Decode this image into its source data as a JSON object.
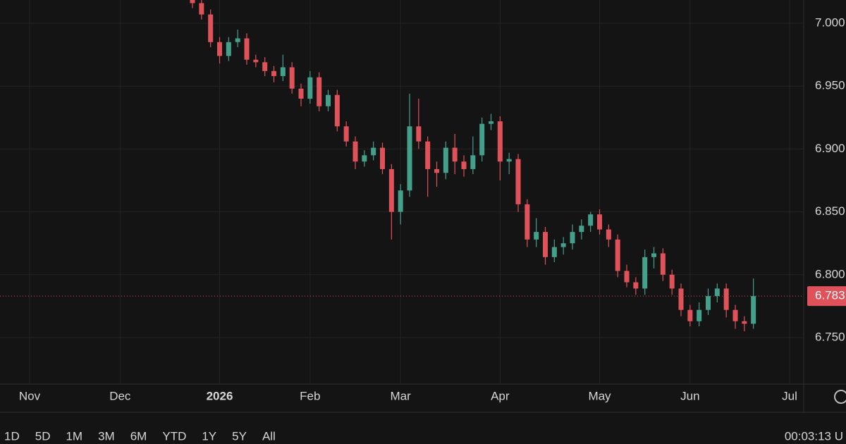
{
  "chart_data": {
    "type": "candlestick",
    "categories": [
      "Nov",
      null,
      null,
      null,
      null,
      null,
      null,
      null,
      null,
      null,
      "Dec",
      null,
      null,
      null,
      null,
      null,
      null,
      null,
      null,
      null,
      null,
      "2026",
      null,
      null,
      null,
      null,
      null,
      null,
      null,
      null,
      null,
      "Feb",
      null,
      null,
      null,
      null,
      null,
      null,
      null,
      null,
      null,
      "Mar",
      null,
      null,
      null,
      null,
      null,
      null,
      null,
      null,
      null,
      null,
      "Apr",
      null,
      null,
      null,
      null,
      null,
      null,
      null,
      null,
      null,
      null,
      "May",
      null,
      null,
      null,
      null,
      null,
      null,
      null,
      null,
      null,
      "Jun",
      null,
      null,
      null,
      null,
      null,
      null,
      null,
      null,
      null,
      null,
      "Jul",
      null
    ],
    "open": [
      null,
      null,
      null,
      null,
      null,
      null,
      null,
      null,
      null,
      null,
      null,
      null,
      null,
      null,
      null,
      null,
      null,
      null,
      7.022,
      7.016,
      7.007,
      6.985,
      6.974,
      6.985,
      6.988,
      6.971,
      6.969,
      6.962,
      6.958,
      6.965,
      6.948,
      6.94,
      6.957,
      6.934,
      6.943,
      6.918,
      6.906,
      6.89,
      6.895,
      6.901,
      6.884,
      6.85,
      6.867,
      6.918,
      6.906,
      6.884,
      6.881,
      6.901,
      6.89,
      6.884,
      6.895,
      6.92,
      6.922,
      6.89,
      6.892,
      6.856,
      6.828,
      6.834,
      6.814,
      6.822,
      6.825,
      6.834,
      6.839,
      6.848,
      6.836,
      6.828,
      6.803,
      6.794,
      6.789,
      6.814,
      6.817,
      6.8,
      6.789,
      6.772,
      6.763,
      6.772,
      6.783,
      6.789,
      6.772,
      6.763,
      6.761,
      null,
      null,
      null,
      null,
      null
    ],
    "high": [
      null,
      null,
      null,
      null,
      null,
      null,
      null,
      null,
      null,
      null,
      null,
      null,
      null,
      null,
      null,
      null,
      null,
      null,
      7.026,
      7.02,
      7.011,
      6.989,
      6.989,
      6.995,
      6.992,
      6.975,
      6.973,
      6.966,
      6.975,
      6.969,
      6.952,
      6.962,
      6.961,
      6.947,
      6.947,
      6.922,
      6.91,
      6.899,
      6.906,
      6.905,
      6.888,
      6.872,
      6.944,
      6.94,
      6.91,
      6.89,
      6.906,
      6.912,
      6.895,
      6.91,
      6.925,
      6.928,
      6.926,
      6.897,
      6.896,
      6.86,
      6.845,
      6.838,
      6.828,
      6.83,
      6.84,
      6.844,
      6.85,
      6.852,
      6.84,
      6.832,
      6.808,
      6.798,
      6.82,
      6.822,
      6.821,
      6.804,
      6.793,
      6.776,
      6.778,
      6.789,
      6.793,
      6.793,
      6.776,
      6.767,
      6.797,
      null,
      null,
      null,
      null,
      null
    ],
    "low": [
      null,
      null,
      null,
      null,
      null,
      null,
      null,
      null,
      null,
      null,
      null,
      null,
      null,
      null,
      null,
      null,
      null,
      null,
      7.012,
      7.003,
      6.981,
      6.968,
      6.97,
      6.981,
      6.967,
      6.965,
      6.958,
      6.953,
      6.954,
      6.944,
      6.934,
      6.936,
      6.93,
      6.93,
      6.914,
      6.902,
      6.884,
      6.886,
      6.891,
      6.88,
      6.828,
      6.84,
      6.862,
      6.9,
      6.862,
      6.87,
      6.876,
      6.88,
      6.878,
      6.88,
      6.89,
      6.915,
      6.875,
      6.88,
      6.85,
      6.822,
      6.822,
      6.808,
      6.81,
      6.816,
      6.82,
      6.828,
      6.834,
      6.832,
      6.822,
      6.798,
      6.79,
      6.784,
      6.784,
      6.805,
      6.795,
      6.784,
      6.767,
      6.759,
      6.759,
      6.768,
      6.778,
      6.766,
      6.757,
      6.755,
      6.757,
      null,
      null,
      null,
      null,
      null
    ],
    "close": [
      null,
      null,
      null,
      null,
      null,
      null,
      null,
      null,
      null,
      null,
      null,
      null,
      null,
      null,
      null,
      null,
      null,
      null,
      7.016,
      7.007,
      6.985,
      6.974,
      6.985,
      6.988,
      6.971,
      6.969,
      6.962,
      6.958,
      6.965,
      6.948,
      6.94,
      6.957,
      6.934,
      6.943,
      6.918,
      6.906,
      6.89,
      6.895,
      6.901,
      6.884,
      6.85,
      6.867,
      6.918,
      6.906,
      6.884,
      6.881,
      6.901,
      6.89,
      6.884,
      6.895,
      6.92,
      6.922,
      6.89,
      6.892,
      6.856,
      6.828,
      6.834,
      6.814,
      6.822,
      6.825,
      6.834,
      6.839,
      6.848,
      6.836,
      6.828,
      6.803,
      6.794,
      6.789,
      6.814,
      6.817,
      6.8,
      6.789,
      6.772,
      6.763,
      6.772,
      6.783,
      6.789,
      6.772,
      6.763,
      6.761,
      6.783,
      null,
      null,
      null,
      null,
      null
    ],
    "up_color": "#44a08b",
    "down_color": "#e0525a",
    "last_price": 6.783,
    "ylim": [
      6.713,
      7.0185
    ],
    "yticks": [
      {
        "value": 6.75,
        "label": "6.750"
      },
      {
        "value": 6.8,
        "label": "6.800"
      },
      {
        "value": 6.85,
        "label": "6.850"
      },
      {
        "value": 6.9,
        "label": "6.900"
      },
      {
        "value": 6.95,
        "label": "6.950"
      },
      {
        "value": 7.0,
        "label": "7.000"
      }
    ],
    "grid": true
  },
  "toolbar": {
    "ranges": [
      "1D",
      "5D",
      "1M",
      "3M",
      "6M",
      "YTD",
      "1Y",
      "5Y",
      "All"
    ],
    "clock": "00:03:13 U"
  }
}
